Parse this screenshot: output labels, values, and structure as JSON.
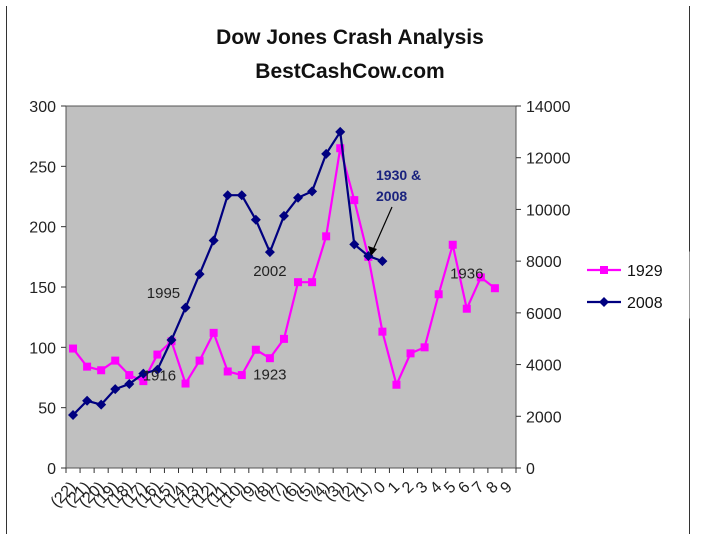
{
  "chart_data": {
    "type": "line",
    "title": "Dow Jones Crash Analysis",
    "subtitle": "BestCashCow.com",
    "xlabel": "",
    "ylabel": "",
    "grid": false,
    "legend_position": "right",
    "background_color": "#c0c0c0",
    "x_tick_labels": [
      "(22)",
      "(21)",
      "(20)",
      "(19)",
      "(18)",
      "(17)",
      "(16)",
      "(15)",
      "(14)",
      "(13)",
      "(12)",
      "(11)",
      "(10)",
      "(9)",
      "(8)",
      "(7)",
      "(6)",
      "(5)",
      "(4)",
      "(3)",
      "(2)",
      "(1)",
      "0",
      "1",
      "2",
      "3",
      "4",
      "5",
      "6",
      "7",
      "8",
      "9"
    ],
    "y_left": {
      "ylim": [
        0,
        300
      ],
      "ticks": [
        "0",
        "50",
        "100",
        "150",
        "200",
        "250",
        "300"
      ]
    },
    "y_right": {
      "ylim": [
        0,
        14000
      ],
      "ticks": [
        "0",
        "2000",
        "4000",
        "6000",
        "8000",
        "10000",
        "12000",
        "14000"
      ]
    },
    "series": [
      {
        "name": "1929",
        "axis": "left",
        "color": "#ff00ff",
        "marker": "square",
        "x": [
          -22,
          -21,
          -20,
          -19,
          -18,
          -17,
          -16,
          -15,
          -14,
          -13,
          -12,
          -11,
          -10,
          -9,
          -8,
          -7,
          -6,
          -5,
          -4,
          -3,
          -2,
          -1,
          0,
          1,
          2,
          3,
          4,
          5,
          6,
          7,
          8,
          9
        ],
        "values": [
          99,
          84,
          81,
          89,
          77,
          72,
          94,
          105,
          70,
          89,
          112,
          80,
          77,
          98,
          91,
          107,
          154,
          154,
          192,
          265,
          222,
          175,
          113,
          69,
          95,
          100,
          144,
          185,
          132,
          158,
          149,
          null
        ]
      },
      {
        "name": "2008",
        "axis": "right",
        "color": "#000080",
        "marker": "diamond",
        "x": [
          -22,
          -21,
          -20,
          -19,
          -18,
          -17,
          -16,
          -15,
          -14,
          -13,
          -12,
          -11,
          -10,
          -9,
          -8,
          -7,
          -6,
          -5,
          -4,
          -3,
          -2,
          -1,
          0,
          1
        ],
        "values": [
          2050,
          2600,
          2450,
          3050,
          3250,
          3650,
          3800,
          4950,
          6200,
          7500,
          8800,
          10550,
          10550,
          9600,
          8350,
          9750,
          10450,
          10700,
          12150,
          13000,
          8650,
          8200,
          8000,
          null
        ]
      }
    ],
    "annotations": [
      {
        "text": "1995",
        "series": "2008",
        "x": -15
      },
      {
        "text": "1916",
        "series": "1929",
        "x": -16
      },
      {
        "text": "2002",
        "series": "2008",
        "x": -8
      },
      {
        "text": "1923",
        "series": "1929",
        "x": -9
      },
      {
        "text": "1930 &",
        "line2": "2008",
        "x": 0
      },
      {
        "text": "1936",
        "series": "1929",
        "x": 6
      }
    ]
  }
}
